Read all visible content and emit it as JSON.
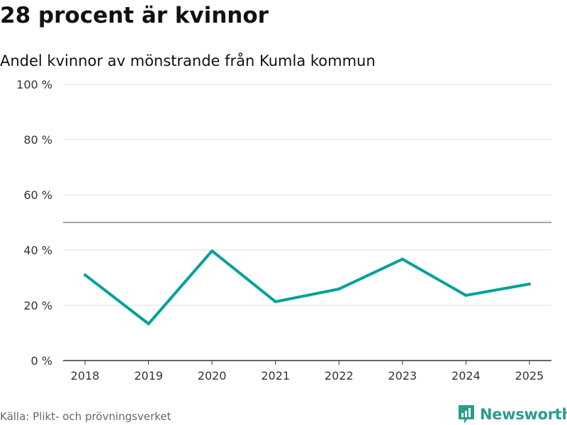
{
  "title": "28 procent är kvinnor",
  "source": "Källa: Plikt- och prövningsverket",
  "logo": "Newsworthy",
  "chart_data": {
    "type": "line",
    "title": "28 procent är kvinnor",
    "subtitle": "Andel kvinnor av mönstrande från Kumla kommun",
    "xlabel": "",
    "ylabel": "",
    "categories": [
      "2018",
      "2019",
      "2020",
      "2021",
      "2022",
      "2023",
      "2024",
      "2025"
    ],
    "series": [
      {
        "name": "Andel kvinnor",
        "values": [
          31.0,
          13.3,
          39.7,
          21.3,
          25.9,
          36.7,
          23.6,
          27.7
        ],
        "color": "#00a19a"
      }
    ],
    "ylim": [
      0,
      100
    ],
    "yticks": [
      0,
      20,
      40,
      60,
      80,
      100
    ],
    "ytick_labels": [
      "0 %",
      "20 %",
      "40 %",
      "60 %",
      "80 %",
      "100 %"
    ],
    "reference_line": 50,
    "grid": true,
    "legend": "none"
  }
}
